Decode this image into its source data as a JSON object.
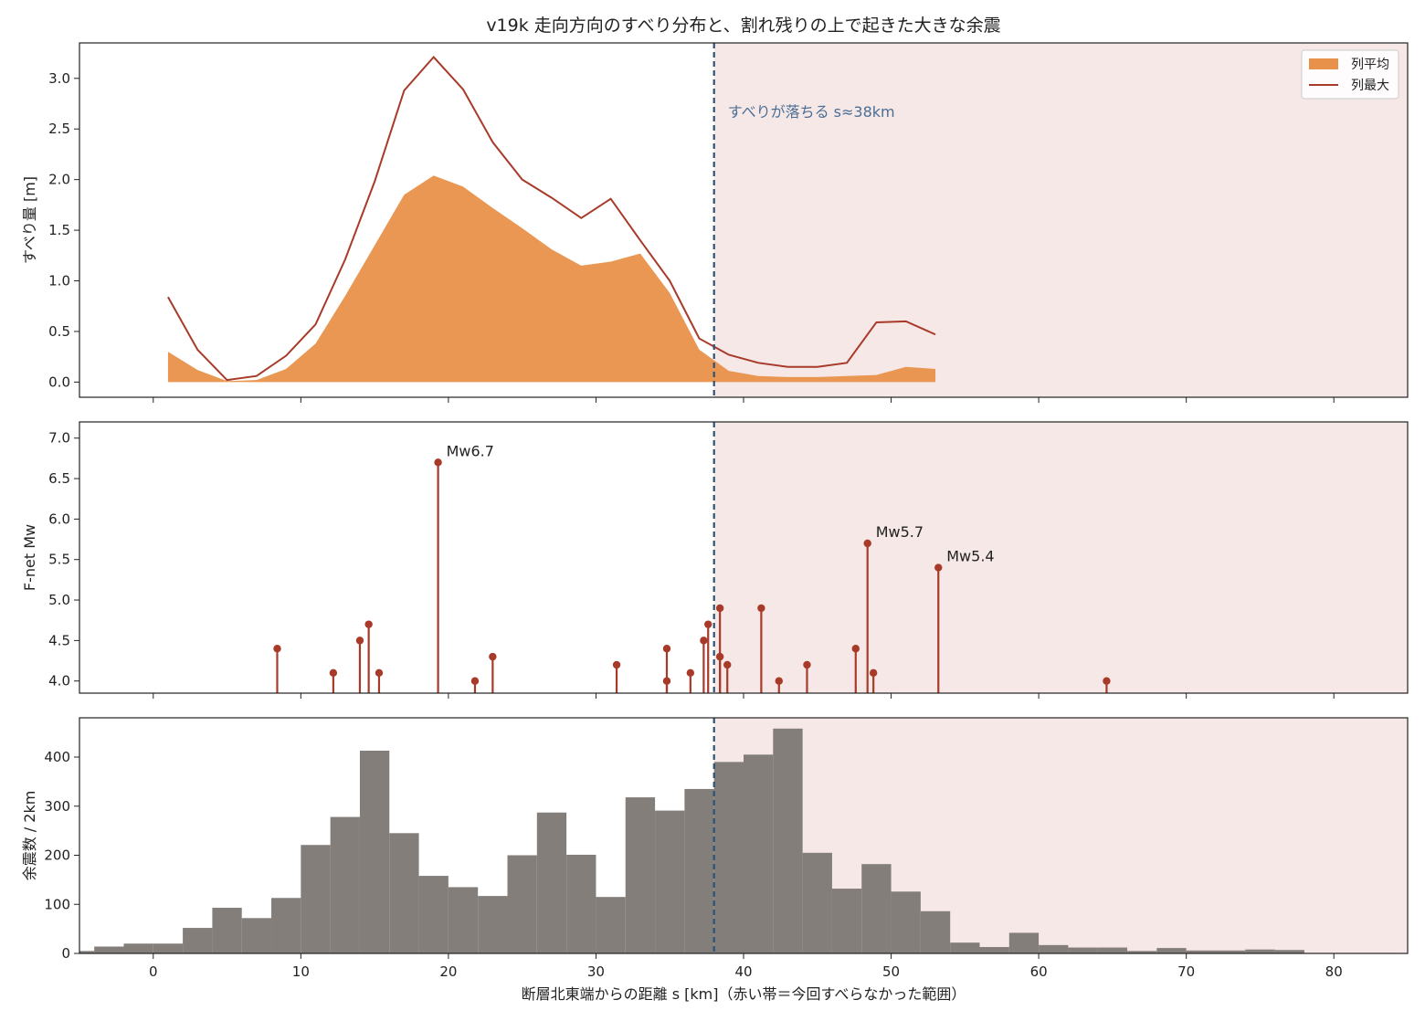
{
  "figure": {
    "title": "v19k 走向方向のすべり分布と、割れ残りの上で起きた大きな余震"
  },
  "colors": {
    "mean_fill": "#e8914a",
    "max_line": "#a83a2a",
    "stem": "#a83a2a",
    "hist_bar": "#807a77",
    "unslipped_band": "#f5e8e6",
    "drop_line": "#2b5277",
    "drop_text": "#4a6e96"
  },
  "chart_data": [
    {
      "type": "area",
      "xlabel": "",
      "ylabel": "すべり量 [m]",
      "xlim": [
        -5,
        85
      ],
      "ylim": [
        -0.15,
        3.35
      ],
      "yticks": [
        0.0,
        0.5,
        1.0,
        1.5,
        2.0,
        2.5,
        3.0
      ],
      "ytick_labels": [
        "0.0",
        "0.5",
        "1.0",
        "1.5",
        "2.0",
        "2.5",
        "3.0"
      ],
      "unslipped_range": [
        38,
        85
      ],
      "drop_s": 38,
      "drop_label": "すべりが落ちる s≈38km",
      "legend": {
        "position": "upper right",
        "mean": "列平均",
        "max": "列最大"
      },
      "series": [
        {
          "name": "列平均",
          "kind": "area",
          "x": [
            1,
            3,
            5,
            7,
            9,
            11,
            13,
            15,
            17,
            19,
            21,
            23,
            25,
            27,
            29,
            31,
            33,
            35,
            37,
            39,
            41,
            43,
            45,
            47,
            49,
            51,
            53
          ],
          "y": [
            0.3,
            0.12,
            0.01,
            0.02,
            0.13,
            0.38,
            0.85,
            1.35,
            1.85,
            2.04,
            1.93,
            1.72,
            1.52,
            1.31,
            1.15,
            1.19,
            1.27,
            0.88,
            0.32,
            0.11,
            0.06,
            0.05,
            0.05,
            0.06,
            0.07,
            0.15,
            0.13
          ]
        },
        {
          "name": "列最大",
          "kind": "line",
          "x": [
            1,
            3,
            5,
            7,
            9,
            11,
            13,
            15,
            17,
            19,
            21,
            23,
            25,
            27,
            29,
            31,
            33,
            35,
            37,
            39,
            41,
            43,
            45,
            47,
            49,
            51,
            53
          ],
          "y": [
            0.84,
            0.32,
            0.02,
            0.06,
            0.26,
            0.57,
            1.21,
            1.98,
            2.88,
            3.21,
            2.89,
            2.37,
            2.0,
            1.82,
            1.62,
            1.81,
            1.4,
            1.0,
            0.43,
            0.27,
            0.19,
            0.15,
            0.15,
            0.19,
            0.59,
            0.6,
            0.47
          ]
        }
      ]
    },
    {
      "type": "scatter",
      "xlabel": "",
      "ylabel": "F-net Mw",
      "xlim": [
        -5,
        85
      ],
      "ylim": [
        3.85,
        7.2
      ],
      "yticks": [
        4.0,
        4.5,
        5.0,
        5.5,
        6.0,
        6.5,
        7.0
      ],
      "ytick_labels": [
        "4.0",
        "4.5",
        "5.0",
        "5.5",
        "6.0",
        "6.5",
        "7.0"
      ],
      "unslipped_range": [
        38,
        85
      ],
      "drop_s": 38,
      "series": [
        {
          "kind": "stem",
          "points": [
            [
              8.4,
              4.4
            ],
            [
              12.2,
              4.1
            ],
            [
              14.0,
              4.5
            ],
            [
              14.6,
              4.7
            ],
            [
              15.3,
              4.1
            ],
            [
              19.3,
              6.7
            ],
            [
              21.8,
              4.0
            ],
            [
              23.0,
              4.3
            ],
            [
              31.4,
              4.2
            ],
            [
              34.8,
              4.4
            ],
            [
              34.8,
              4.0
            ],
            [
              36.4,
              4.1
            ],
            [
              37.3,
              4.5
            ],
            [
              37.6,
              4.7
            ],
            [
              38.4,
              4.9
            ],
            [
              38.4,
              4.3
            ],
            [
              38.9,
              4.2
            ],
            [
              41.2,
              4.9
            ],
            [
              42.4,
              4.0
            ],
            [
              44.3,
              4.2
            ],
            [
              47.6,
              4.4
            ],
            [
              48.4,
              5.7
            ],
            [
              48.8,
              4.1
            ],
            [
              53.2,
              5.4
            ],
            [
              64.6,
              4.0
            ]
          ]
        }
      ],
      "annotations": [
        {
          "x": 19.3,
          "y": 6.7,
          "text": "Mw6.7"
        },
        {
          "x": 48.4,
          "y": 5.7,
          "text": "Mw5.7"
        },
        {
          "x": 53.2,
          "y": 5.4,
          "text": "Mw5.4"
        }
      ]
    },
    {
      "type": "bar",
      "xlabel": "断層北東端からの距離 s [km]（赤い帯＝今回すべらなかった範囲）",
      "ylabel": "余震数 / 2km",
      "xlim": [
        -5,
        85
      ],
      "ylim": [
        0,
        480
      ],
      "xticks": [
        0,
        10,
        20,
        30,
        40,
        50,
        60,
        70,
        80
      ],
      "xtick_labels": [
        "0",
        "10",
        "20",
        "30",
        "40",
        "50",
        "60",
        "70",
        "80"
      ],
      "yticks": [
        0,
        100,
        200,
        300,
        400
      ],
      "ytick_labels": [
        "0",
        "100",
        "200",
        "300",
        "400"
      ],
      "unslipped_range": [
        38,
        85
      ],
      "drop_s": 38,
      "bin_width": 2,
      "bin_starts": [
        -6,
        -4,
        -2,
        0,
        2,
        4,
        6,
        8,
        10,
        12,
        14,
        16,
        18,
        20,
        22,
        24,
        26,
        28,
        30,
        32,
        34,
        36,
        38,
        40,
        42,
        44,
        46,
        48,
        50,
        52,
        54,
        56,
        58,
        60,
        62,
        64,
        66,
        68,
        70,
        72,
        74,
        76,
        78,
        80,
        82
      ],
      "values": [
        5,
        14,
        20,
        20,
        52,
        93,
        72,
        113,
        221,
        278,
        413,
        245,
        158,
        135,
        117,
        200,
        287,
        201,
        115,
        318,
        291,
        335,
        390,
        405,
        458,
        205,
        132,
        182,
        126,
        86,
        22,
        13,
        42,
        17,
        12,
        12,
        5,
        11,
        6,
        6,
        8,
        7,
        1,
        1,
        1
      ]
    }
  ]
}
